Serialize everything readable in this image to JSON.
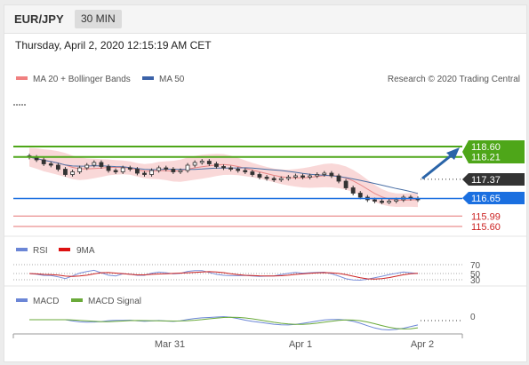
{
  "header": {
    "pair": "EUR/JPY",
    "timeframe": "30 MIN"
  },
  "datetime": "Thursday, April 2, 2020 12:15:19 AM CET",
  "legend": {
    "ma20": "MA 20 + Bollinger Bands",
    "ma50": "MA 50",
    "credit": "Research © 2020 Trading Central",
    "rsi": "RSI",
    "rsi_ma": "9MA",
    "macd": "MACD",
    "macd_signal": "MACD Signal"
  },
  "colors": {
    "green": "#4ea619",
    "blue_level": "#1a6fe0",
    "red_level": "#cc2222",
    "dark": "#333333",
    "band": "#f6c8c8",
    "ma20": "#e88585",
    "ma50": "#4a6fa5",
    "rsi_line": "#7b8fd8",
    "macd_signal": "#6aaa3a"
  },
  "chart_data": [
    {
      "type": "line",
      "subtype": "candlestick",
      "x_labels": [
        "Mar 31",
        "Apr 1",
        "Apr 2"
      ],
      "close": [
        118.2,
        118.1,
        117.95,
        117.9,
        117.75,
        117.55,
        117.65,
        117.8,
        117.9,
        118.0,
        117.85,
        117.7,
        117.65,
        117.8,
        117.75,
        117.6,
        117.55,
        117.7,
        117.8,
        117.75,
        117.65,
        117.7,
        117.9,
        118.0,
        118.05,
        117.95,
        117.85,
        117.8,
        117.75,
        117.7,
        117.65,
        117.55,
        117.45,
        117.4,
        117.35,
        117.4,
        117.45,
        117.5,
        117.45,
        117.5,
        117.55,
        117.6,
        117.5,
        117.3,
        117.05,
        116.85,
        116.7,
        116.6,
        116.55,
        116.52,
        116.55,
        116.6,
        116.7,
        116.65,
        116.6
      ],
      "ma50_end": 116.97,
      "resistance_levels": [
        118.6,
        118.21
      ],
      "current_price": 117.37,
      "support_levels": [
        116.65,
        115.99,
        115.6
      ],
      "y_labels": [
        "118.60",
        "118.21",
        "117.37",
        "116.65",
        "115.99",
        "115.60"
      ]
    },
    {
      "type": "line",
      "name": "RSI",
      "levels": [
        70,
        50,
        30
      ],
      "y_labels": [
        "70",
        "50",
        "30"
      ]
    },
    {
      "type": "line",
      "name": "MACD",
      "levels": [
        0
      ],
      "y_labels": [
        "0"
      ]
    }
  ]
}
